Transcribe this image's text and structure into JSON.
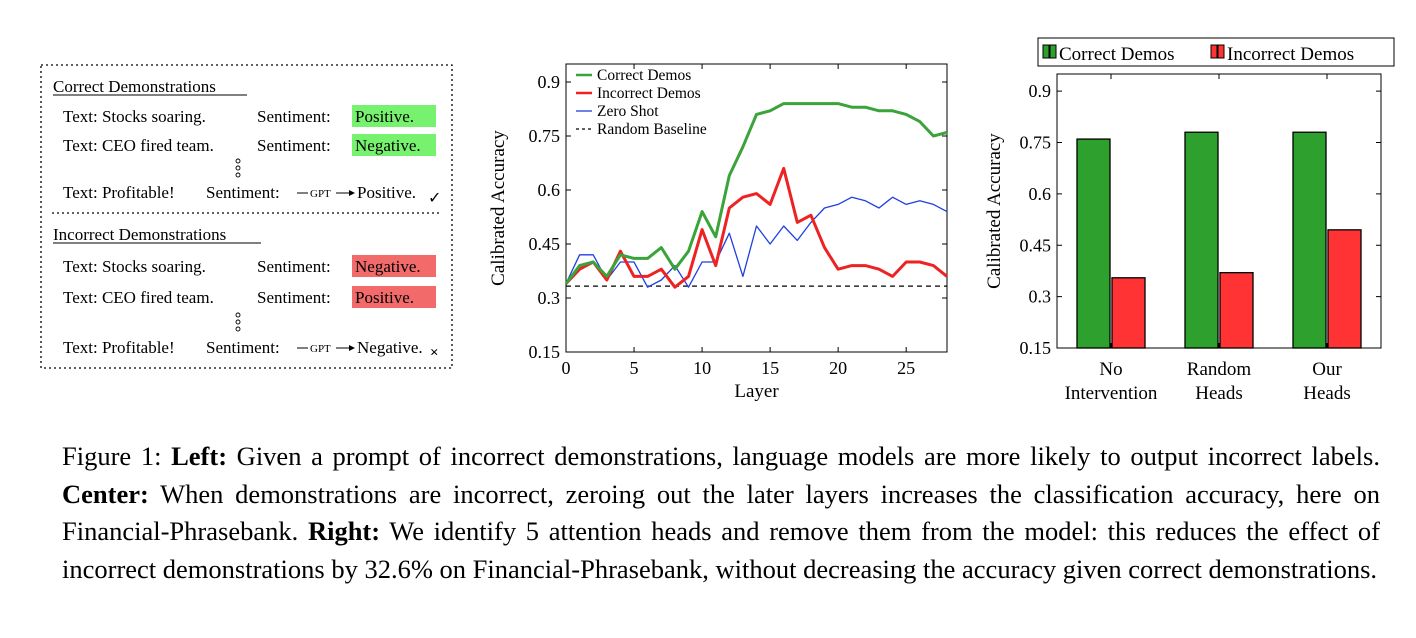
{
  "left_panel": {
    "correct_heading": "Correct Demonstrations",
    "incorrect_heading": "Incorrect Demonstrations",
    "correct_rows": [
      {
        "text": "Text: Stocks soaring.",
        "sentiment_label": "Sentiment:",
        "label": "Positive."
      },
      {
        "text": "Text: CEO fired team.",
        "sentiment_label": "Sentiment:",
        "label": "Negative."
      }
    ],
    "correct_query": {
      "text": "Text: Profitable!",
      "sentiment_label": "Sentiment:",
      "gpt": "GPT",
      "output": "Positive.",
      "mark": "✓"
    },
    "incorrect_rows": [
      {
        "text": "Text: Stocks soaring.",
        "sentiment_label": "Sentiment:",
        "label": "Negative."
      },
      {
        "text": "Text: CEO fired team.",
        "sentiment_label": "Sentiment:",
        "label": "Positive."
      }
    ],
    "incorrect_query": {
      "text": "Text: Profitable!",
      "sentiment_label": "Sentiment:",
      "gpt": "GPT",
      "output": "Negative.",
      "mark": "×"
    },
    "colors": {
      "correct_highlight": "#77f26f",
      "incorrect_highlight": "#f26a6a"
    }
  },
  "chart_data": [
    {
      "type": "line",
      "xlabel": "Layer",
      "ylabel": "Calibrated Accuracy",
      "xlim": [
        0,
        28
      ],
      "ylim": [
        0.15,
        0.95
      ],
      "xticks": [
        0,
        5,
        10,
        15,
        20,
        25
      ],
      "yticks": [
        0.15,
        0.3,
        0.45,
        0.6,
        0.75,
        0.9
      ],
      "ytick_labels": [
        "0.15",
        "0.3",
        "0.45",
        "0.6",
        "0.75",
        "0.9"
      ],
      "legend_position": "top-left",
      "x": [
        0,
        1,
        2,
        3,
        4,
        5,
        6,
        7,
        8,
        9,
        10,
        11,
        12,
        13,
        14,
        15,
        16,
        17,
        18,
        19,
        20,
        21,
        22,
        23,
        24,
        25,
        26,
        27,
        28
      ],
      "series": [
        {
          "name": "Correct Demos",
          "color": "#3aa33a",
          "width": 3,
          "values": [
            0.34,
            0.39,
            0.4,
            0.36,
            0.42,
            0.41,
            0.41,
            0.44,
            0.38,
            0.43,
            0.54,
            0.47,
            0.64,
            0.72,
            0.81,
            0.82,
            0.84,
            0.84,
            0.84,
            0.84,
            0.84,
            0.83,
            0.83,
            0.82,
            0.82,
            0.81,
            0.79,
            0.75,
            0.76
          ]
        },
        {
          "name": "Incorrect Demos",
          "color": "#ee2222",
          "width": 3,
          "values": [
            0.34,
            0.38,
            0.4,
            0.35,
            0.43,
            0.36,
            0.36,
            0.38,
            0.33,
            0.36,
            0.49,
            0.39,
            0.55,
            0.58,
            0.59,
            0.56,
            0.66,
            0.51,
            0.53,
            0.44,
            0.38,
            0.39,
            0.39,
            0.38,
            0.36,
            0.4,
            0.4,
            0.39,
            0.36
          ]
        },
        {
          "name": "Zero Shot",
          "color": "#1f3fe0",
          "width": 1.3,
          "values": [
            0.34,
            0.42,
            0.42,
            0.35,
            0.4,
            0.4,
            0.33,
            0.35,
            0.39,
            0.33,
            0.4,
            0.4,
            0.48,
            0.36,
            0.5,
            0.45,
            0.5,
            0.46,
            0.51,
            0.55,
            0.56,
            0.58,
            0.57,
            0.55,
            0.58,
            0.56,
            0.57,
            0.56,
            0.54
          ]
        },
        {
          "name": "Random Baseline",
          "color": "#000000",
          "width": 1.2,
          "dashed": true,
          "values": [
            0.333,
            0.333,
            0.333,
            0.333,
            0.333,
            0.333,
            0.333,
            0.333,
            0.333,
            0.333,
            0.333,
            0.333,
            0.333,
            0.333,
            0.333,
            0.333,
            0.333,
            0.333,
            0.333,
            0.333,
            0.333,
            0.333,
            0.333,
            0.333,
            0.333,
            0.333,
            0.333,
            0.333,
            0.333
          ]
        }
      ]
    },
    {
      "type": "bar",
      "ylabel": "Calibrated Accuracy",
      "ylim": [
        0.15,
        0.95
      ],
      "yticks": [
        0.15,
        0.3,
        0.45,
        0.6,
        0.75,
        0.9
      ],
      "ytick_labels": [
        "0.15",
        "0.3",
        "0.45",
        "0.6",
        "0.75",
        "0.9"
      ],
      "categories": [
        [
          "No",
          "Intervention"
        ],
        [
          "Random",
          "Heads"
        ],
        [
          "Our",
          "Heads"
        ]
      ],
      "legend_position": "top",
      "series": [
        {
          "name": "Correct Demos",
          "color": "#2ea02e",
          "values": [
            0.76,
            0.78,
            0.78
          ]
        },
        {
          "name": "Incorrect Demos",
          "color": "#ff3333",
          "values": [
            0.355,
            0.37,
            0.495
          ]
        }
      ]
    }
  ],
  "caption": {
    "prefix": "Figure 1: ",
    "left_bold": "Left:",
    "left_text": " Given a prompt of incorrect demonstrations, language models are more likely to output incorrect labels. ",
    "center_bold": "Center:",
    "center_text": " When demonstrations are incorrect, zeroing out the later layers increases the classification accuracy, here on Financial-Phrasebank. ",
    "right_bold": "Right:",
    "right_text": " We identify 5 attention heads and remove them from the model: this reduces the effect of incorrect demonstrations by 32.6% on Financial-Phrasebank, without decreasing the accuracy given correct demonstrations."
  }
}
